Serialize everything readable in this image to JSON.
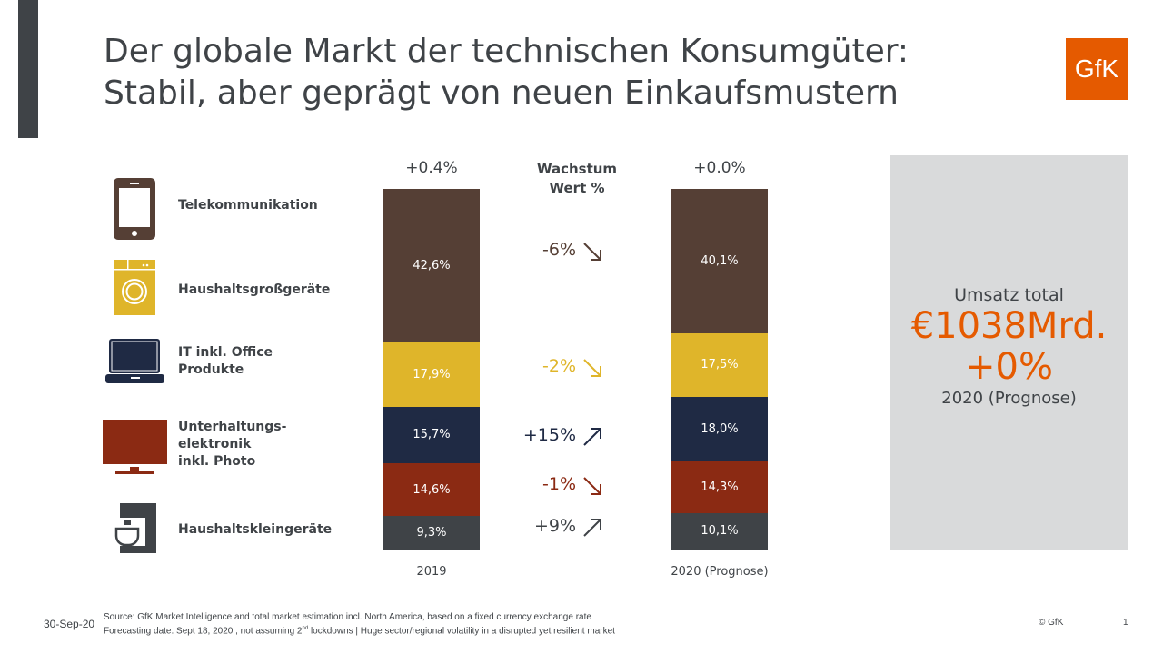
{
  "title_line1": "Der globale Markt der technischen Konsumgüter:",
  "title_line2": "Stabil, aber geprägt von neuen Einkaufsmustern",
  "logo": "GfK",
  "growth_header": [
    "Wachstum",
    "Wert %"
  ],
  "panel": {
    "label": "Umsatz total",
    "value": "€1038Mrd.",
    "change": "+0%",
    "period": "2020 (Prognose)",
    "accent": "#e55a00"
  },
  "chart_data": {
    "type": "bar",
    "stacked": true,
    "categories": [
      "2019",
      "2020 (Prognose)"
    ],
    "totals_growth": [
      "+0.4%",
      "+0.0%"
    ],
    "series": [
      {
        "name": "Haushaltskleingeräte",
        "icon": "coffee-machine-icon",
        "color": "#3f4347",
        "values": [
          9.3,
          10.1
        ],
        "labels": [
          "9,3%",
          "10,1%"
        ],
        "growth": "+9%",
        "trend": "up"
      },
      {
        "name": "Unterhaltungs-elektronik inkl. Photo",
        "lines": [
          "Unterhaltungs-",
          "elektronik",
          "inkl. Photo"
        ],
        "icon": "tv-icon",
        "color": "#8b2a13",
        "values": [
          14.6,
          14.3
        ],
        "labels": [
          "14,6%",
          "14,3%"
        ],
        "growth": "-1%",
        "trend": "down"
      },
      {
        "name": "IT inkl. Office Produkte",
        "lines": [
          "IT inkl. Office",
          "Produkte"
        ],
        "icon": "laptop-icon",
        "color": "#1f2a44",
        "values": [
          15.7,
          18.0
        ],
        "labels": [
          "15,7%",
          "18,0%"
        ],
        "growth": "+15%",
        "trend": "up"
      },
      {
        "name": "Haushaltsgroßgeräte",
        "icon": "washing-machine-icon",
        "color": "#dfb52a",
        "values": [
          17.9,
          17.5
        ],
        "labels": [
          "17,9%",
          "17,5%"
        ],
        "growth": "-2%",
        "trend": "down"
      },
      {
        "name": "Telekommunikation",
        "icon": "smartphone-icon",
        "color": "#553f35",
        "values": [
          42.6,
          40.1
        ],
        "labels": [
          "42,6%",
          "40,1%"
        ],
        "growth": "-6%",
        "trend": "down"
      }
    ]
  },
  "footer": {
    "date": "30-Sep-20",
    "source1": "Source: GfK Market Intelligence and total market estimation incl. North America, based on a fixed currency exchange rate",
    "source2a": "Forecasting date: Sept 18, 2020 , not assuming 2",
    "source2sup": "nd",
    "source2b": " lockdowns | Huge sector/regional volatility in a disrupted yet resilient market",
    "copyright": "© GfK",
    "page": "1"
  }
}
